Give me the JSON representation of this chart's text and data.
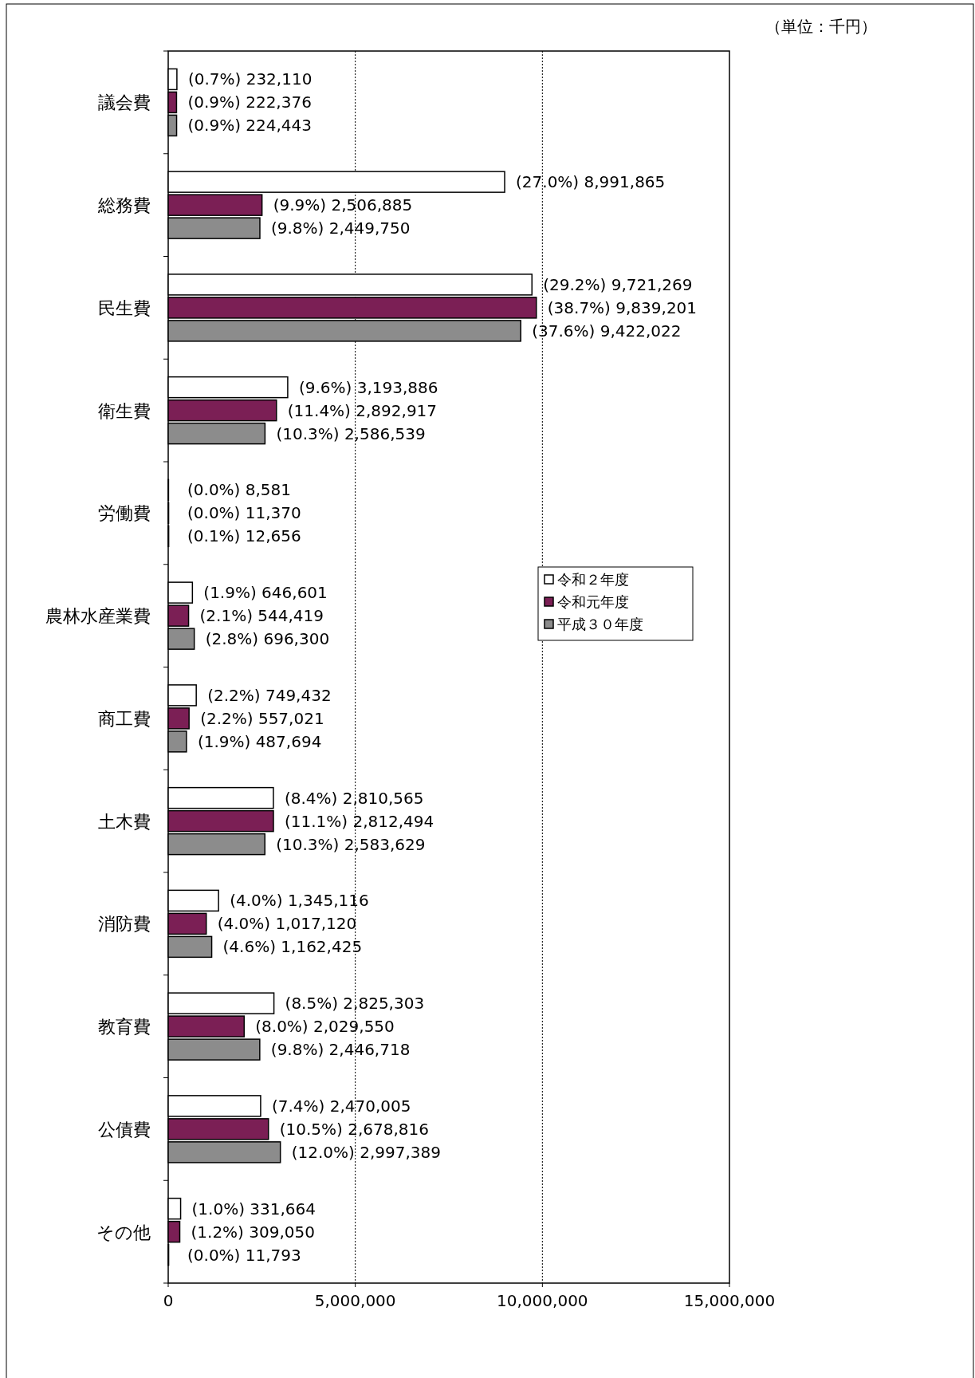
{
  "chart_data": {
    "type": "bar",
    "orientation": "horizontal",
    "annotations": [
      "（単位：千円）"
    ],
    "categories": [
      "議会費",
      "総務費",
      "民生費",
      "衛生費",
      "労働費",
      "農林水産業費",
      "商工費",
      "土木費",
      "消防費",
      "教育費",
      "公債費",
      "その他"
    ],
    "series": [
      {
        "name": "令和２年度",
        "color": "#ffffff",
        "values": [
          232110,
          8991865,
          9721269,
          3193886,
          8581,
          646601,
          749432,
          2810565,
          1345116,
          2825303,
          2470005,
          331664
        ],
        "value_labels": [
          "(0.7%) 232,110",
          "(27.0%) 8,991,865",
          "(29.2%) 9,721,269",
          "(9.6%) 3,193,886",
          "(0.0%) 8,581",
          "(1.9%) 646,601",
          "(2.2%) 749,432",
          "(8.4%) 2,810,565",
          "(4.0%) 1,345,116",
          "(8.5%) 2,825,303",
          "(7.4%) 2,470,005",
          "(1.0%) 331,664"
        ]
      },
      {
        "name": "令和元年度",
        "color": "#7b1f55",
        "values": [
          222376,
          2506885,
          9839201,
          2892917,
          11370,
          544419,
          557021,
          2812494,
          1017120,
          2029550,
          2678816,
          309050
        ],
        "value_labels": [
          "(0.9%) 222,376",
          "(9.9%) 2,506,885",
          "(38.7%) 9,839,201",
          "(11.4%) 2,892,917",
          "(0.0%) 11,370",
          "(2.1%) 544,419",
          "(2.2%) 557,021",
          "(11.1%) 2,812,494",
          "(4.0%) 1,017,120",
          "(8.0%) 2,029,550",
          "(10.5%) 2,678,816",
          "(1.2%) 309,050"
        ]
      },
      {
        "name": "平成３０年度",
        "color": "#8c8c8c",
        "values": [
          224443,
          2449750,
          9422022,
          2586539,
          12656,
          696300,
          487694,
          2583629,
          1162425,
          2446718,
          2997389,
          11793
        ],
        "value_labels": [
          "(0.9%) 224,443",
          "(9.8%) 2,449,750",
          "(37.6%) 9,422,022",
          "(10.3%) 2,586,539",
          "(0.1%) 12,656",
          "(2.8%) 696,300",
          "(1.9%) 487,694",
          "(10.3%) 2,583,629",
          "(4.6%) 1,162,425",
          "(9.8%) 2,446,718",
          "(12.0%) 2,997,389",
          "(0.0%) 11,793"
        ]
      }
    ],
    "xlim": [
      0,
      15000000
    ],
    "xticks": [
      0,
      {
        "value": 5000000,
        "label": "5,000,000"
      },
      {
        "value": 10000000,
        "label": "10,000,000"
      },
      {
        "value": 15000000,
        "label": "15,000,000"
      }
    ],
    "grid": "x",
    "legend": "right"
  }
}
